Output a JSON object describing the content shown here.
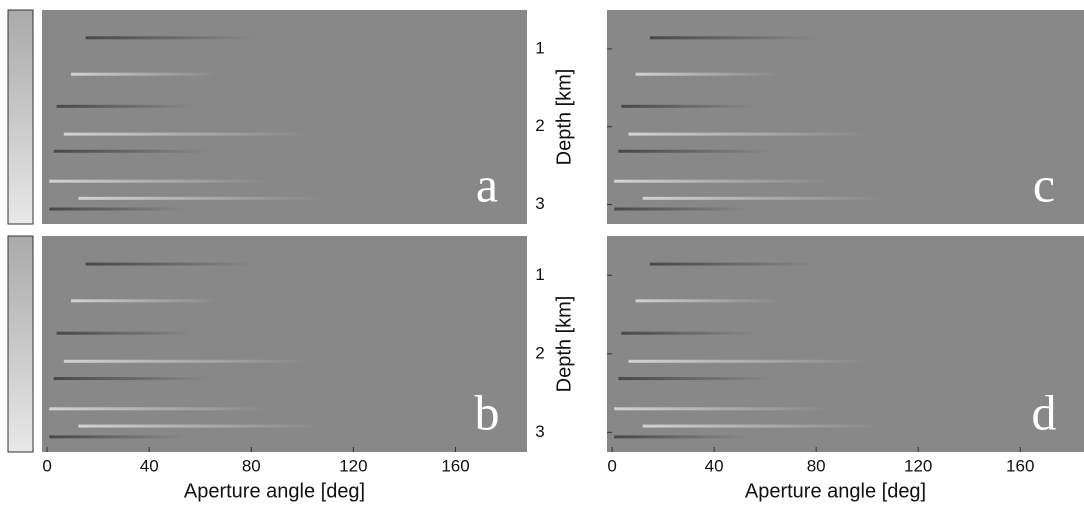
{
  "chart_data": [
    {
      "type": "image",
      "label": "a"
    },
    {
      "type": "image",
      "label": "b",
      "xlim": [
        -2,
        188
      ],
      "xticks": [
        0,
        40,
        80,
        120,
        160
      ],
      "xlabel": "Aperture angle [deg]"
    },
    {
      "type": "image",
      "label": "c",
      "ylim": [
        0.5,
        3.25
      ],
      "yticks": [
        1,
        2,
        3
      ],
      "ylabel": "Depth [km]"
    },
    {
      "type": "image",
      "label": "d",
      "xlim": [
        -2,
        185
      ],
      "xticks": [
        0,
        40,
        80,
        120,
        160
      ],
      "xlabel": "Aperture angle [deg]",
      "ylim": [
        0.5,
        3.25
      ],
      "yticks": [
        1,
        2,
        3
      ],
      "ylabel": "Depth [km]"
    }
  ]
}
